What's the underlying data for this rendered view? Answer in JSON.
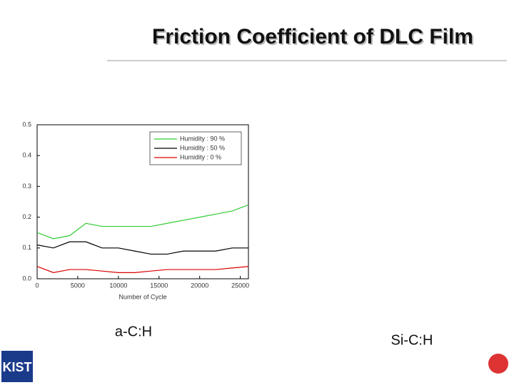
{
  "title": "Friction Coefficient of DLC Film",
  "captions": [
    "a-C:H",
    "Si-C:H"
  ],
  "logo": "KIST",
  "chart_data": {
    "type": "line",
    "x_label": "Number of Cycle",
    "x": [
      0,
      2000,
      4000,
      6000,
      8000,
      10000,
      12000,
      14000,
      16000,
      18000,
      20000,
      22000,
      24000,
      26000
    ],
    "series": [
      {
        "name": "Humidity : 90 %",
        "color": "#33cc33",
        "values": [
          0.15,
          0.13,
          0.14,
          0.18,
          0.17,
          0.17,
          0.17,
          0.17,
          0.18,
          0.19,
          0.2,
          0.21,
          0.22,
          0.24
        ]
      },
      {
        "name": "Humidity : 50 %",
        "color": "#000000",
        "values": [
          0.11,
          0.1,
          0.12,
          0.12,
          0.1,
          0.1,
          0.09,
          0.08,
          0.08,
          0.09,
          0.09,
          0.09,
          0.1,
          0.1
        ]
      },
      {
        "name": "Humidity :  0 %",
        "color": "#dd0000",
        "values": [
          0.04,
          0.02,
          0.03,
          0.03,
          0.025,
          0.02,
          0.02,
          0.025,
          0.03,
          0.03,
          0.03,
          0.03,
          0.035,
          0.04
        ]
      }
    ],
    "xlim": [
      0,
      26000
    ],
    "xticks": [
      0,
      5000,
      10000,
      15000,
      20000,
      25000
    ],
    "ylim": [
      0,
      0.5
    ],
    "yticks": [
      {
        "value": 0,
        "label": "0.0"
      },
      0.1,
      0.2,
      0.3,
      0.4,
      0.5
    ],
    "legend": "upper right"
  }
}
